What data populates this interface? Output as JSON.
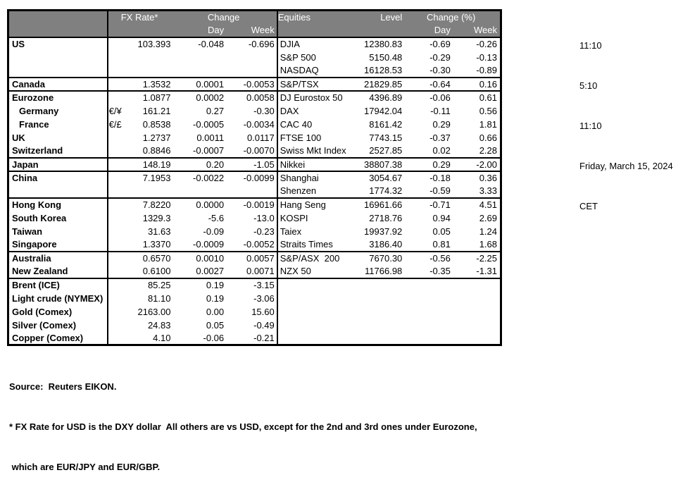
{
  "colors": {
    "header_bg": "#808080",
    "header_text": "#ffffff",
    "border": "#000000",
    "body_text": "#000000",
    "background": "#ffffff"
  },
  "table": {
    "header": {
      "fx_rate": "FX Rate*",
      "change": "Change",
      "day": "Day",
      "week": "Week",
      "equities": "Equities",
      "level": "Level",
      "change_pct": "Change (%)",
      "day2": "Day",
      "week2": "Week"
    },
    "rows": [
      {
        "label": "US",
        "sym": "",
        "fx": "103.393",
        "day": "-0.048",
        "week": "-0.696",
        "eq": "DJIA",
        "level": "12380.83",
        "eday": "-0.69",
        "eweek": "-0.26",
        "group": false,
        "indent": false
      },
      {
        "label": "",
        "sym": "",
        "fx": "",
        "day": "",
        "week": "",
        "eq": "S&P 500",
        "level": "5150.48",
        "eday": "-0.29",
        "eweek": "-0.13",
        "group": false,
        "indent": false
      },
      {
        "label": "",
        "sym": "",
        "fx": "",
        "day": "",
        "week": "",
        "eq": "NASDAQ",
        "level": "16128.53",
        "eday": "-0.30",
        "eweek": "-0.89",
        "group": false,
        "indent": false
      },
      {
        "label": "Canada",
        "sym": "",
        "fx": "1.3532",
        "day": "0.0001",
        "week": "-0.0053",
        "eq": "S&P/TSX",
        "level": "21829.85",
        "eday": "-0.64",
        "eweek": "0.16",
        "group": true,
        "indent": false
      },
      {
        "label": "Eurozone",
        "sym": "",
        "fx": "1.0877",
        "day": "0.0002",
        "week": "0.0058",
        "eq": "DJ Eurostox 50",
        "level": "4396.89",
        "eday": "-0.06",
        "eweek": "0.61",
        "group": true,
        "indent": false
      },
      {
        "label": "Germany",
        "sym": "€/¥",
        "fx": "161.21",
        "day": "0.27",
        "week": "-0.30",
        "eq": "DAX",
        "level": "17942.04",
        "eday": "-0.11",
        "eweek": "0.56",
        "group": false,
        "indent": true
      },
      {
        "label": "France",
        "sym": "€/£",
        "fx": "0.8538",
        "day": "-0.0005",
        "week": "-0.0034",
        "eq": "CAC 40",
        "level": "8161.42",
        "eday": "0.29",
        "eweek": "1.81",
        "group": false,
        "indent": true
      },
      {
        "label": "UK",
        "sym": "",
        "fx": "1.2737",
        "day": "0.0011",
        "week": "0.0117",
        "eq": "FTSE 100",
        "level": "7743.15",
        "eday": "-0.37",
        "eweek": "0.66",
        "group": false,
        "indent": false
      },
      {
        "label": "Switzerland",
        "sym": "",
        "fx": "0.8846",
        "day": "-0.0007",
        "week": "-0.0070",
        "eq": "Swiss Mkt Index",
        "level": "2527.85",
        "eday": "0.02",
        "eweek": "2.28",
        "group": false,
        "indent": false
      },
      {
        "label": "Japan",
        "sym": "",
        "fx": "148.19",
        "day": "0.20",
        "week": "-1.05",
        "eq": "Nikkei",
        "level": "38807.38",
        "eday": "0.29",
        "eweek": "-2.00",
        "group": true,
        "indent": false
      },
      {
        "label": "China",
        "sym": "",
        "fx": "7.1953",
        "day": "-0.0022",
        "week": "-0.0099",
        "eq": "Shanghai",
        "level": "3054.67",
        "eday": "-0.18",
        "eweek": "0.36",
        "group": true,
        "indent": false
      },
      {
        "label": "",
        "sym": "",
        "fx": "",
        "day": "",
        "week": "",
        "eq": "Shenzen",
        "level": "1774.32",
        "eday": "-0.59",
        "eweek": "3.33",
        "group": false,
        "indent": false
      },
      {
        "label": "Hong Kong",
        "sym": "",
        "fx": "7.8220",
        "day": "0.0000",
        "week": "-0.0019",
        "eq": "Hang Seng",
        "level": "16961.66",
        "eday": "-0.71",
        "eweek": "4.51",
        "group": true,
        "indent": false
      },
      {
        "label": "South Korea",
        "sym": "",
        "fx": "1329.3",
        "day": "-5.6",
        "week": "-13.0",
        "eq": "KOSPI",
        "level": "2718.76",
        "eday": "0.94",
        "eweek": "2.69",
        "group": false,
        "indent": false
      },
      {
        "label": "Taiwan",
        "sym": "",
        "fx": "31.63",
        "day": "-0.09",
        "week": "-0.23",
        "eq": "Taiex",
        "level": "19937.92",
        "eday": "0.05",
        "eweek": "1.24",
        "group": false,
        "indent": false
      },
      {
        "label": "Singapore",
        "sym": "",
        "fx": "1.3370",
        "day": "-0.0009",
        "week": "-0.0052",
        "eq": "Straits Times",
        "level": "3186.40",
        "eday": "0.81",
        "eweek": "1.68",
        "group": false,
        "indent": false
      },
      {
        "label": "Australia",
        "sym": "",
        "fx": "0.6570",
        "day": "0.0010",
        "week": "0.0057",
        "eq": "S&P/ASX  200",
        "level": "7670.30",
        "eday": "-0.56",
        "eweek": "-2.25",
        "group": true,
        "indent": false
      },
      {
        "label": "New Zealand",
        "sym": "",
        "fx": "0.6100",
        "day": "0.0027",
        "week": "0.0071",
        "eq": "NZX 50",
        "level": "11766.98",
        "eday": "-0.35",
        "eweek": "-1.31",
        "group": false,
        "indent": false
      },
      {
        "label": "Brent (ICE)",
        "sym": "",
        "fx": "85.25",
        "day": "0.19",
        "week": "-3.15",
        "eq": "",
        "level": "",
        "eday": "",
        "eweek": "",
        "group": true,
        "indent": false
      },
      {
        "label": "Light crude (NYMEX)",
        "sym": "",
        "fx": "81.10",
        "day": "0.19",
        "week": "-3.06",
        "eq": "",
        "level": "",
        "eday": "",
        "eweek": "",
        "group": false,
        "indent": false
      },
      {
        "label": "Gold (Comex)",
        "sym": "",
        "fx": "2163.00",
        "day": "0.00",
        "week": "15.60",
        "eq": "",
        "level": "",
        "eday": "",
        "eweek": "",
        "group": false,
        "indent": false
      },
      {
        "label": "Silver (Comex)",
        "sym": "",
        "fx": "24.83",
        "day": "0.05",
        "week": "-0.49",
        "eq": "",
        "level": "",
        "eday": "",
        "eweek": "",
        "group": false,
        "indent": false
      },
      {
        "label": "Copper (Comex)",
        "sym": "",
        "fx": "4.10",
        "day": "-0.06",
        "week": "-0.21",
        "eq": "",
        "level": "",
        "eday": "",
        "eweek": "",
        "group": false,
        "indent": false
      }
    ]
  },
  "timestamps": [
    "11:10",
    "5:10",
    "11:10",
    "Friday, March 15, 2024",
    "CET"
  ],
  "footer": {
    "source": "Source:  Reuters EIKON.",
    "footnote_line1": "* FX Rate for USD is the DXY dollar  All others are vs USD, except for the 2nd and 3rd ones under Eurozone,",
    "footnote_line2": " which are EUR/JPY and EUR/GBP."
  }
}
